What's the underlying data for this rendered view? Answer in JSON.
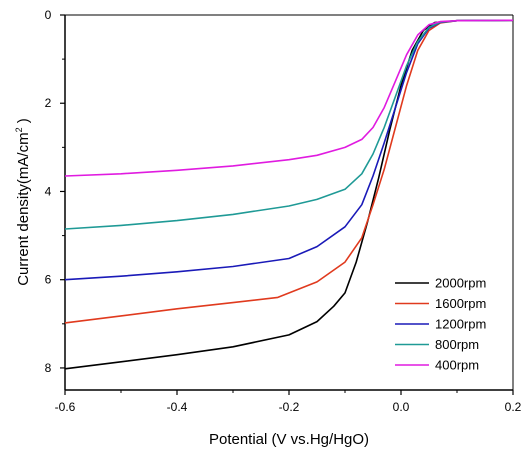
{
  "chart_data": {
    "type": "line",
    "xlabel": "Potential (V vs.Hg/HgO)",
    "ylabel": "Current density(mA/cm",
    "ylabel_sup": "2",
    "ylabel_tail": " )",
    "xlim": [
      -0.6,
      0.2
    ],
    "ylim": [
      8.5,
      0
    ],
    "y_inverted": true,
    "xticks": [
      "-0.6",
      "-0.4",
      "-0.2",
      "0.0",
      "0.2"
    ],
    "yticks": [
      "0",
      "2",
      "4",
      "6",
      "8"
    ],
    "grid": false,
    "legend_position": "bottom-right",
    "series": [
      {
        "name": "2000rpm",
        "color": "#000000",
        "points": [
          [
            -0.6,
            8.02
          ],
          [
            -0.5,
            7.86
          ],
          [
            -0.4,
            7.7
          ],
          [
            -0.3,
            7.52
          ],
          [
            -0.2,
            7.25
          ],
          [
            -0.15,
            6.95
          ],
          [
            -0.12,
            6.6
          ],
          [
            -0.1,
            6.3
          ],
          [
            -0.08,
            5.6
          ],
          [
            -0.06,
            4.7
          ],
          [
            -0.04,
            3.7
          ],
          [
            -0.02,
            2.6
          ],
          [
            0.0,
            1.6
          ],
          [
            0.02,
            0.8
          ],
          [
            0.04,
            0.35
          ],
          [
            0.06,
            0.17
          ],
          [
            0.1,
            0.13
          ],
          [
            0.2,
            0.12
          ]
        ]
      },
      {
        "name": "1600rpm",
        "color": "#e03a1e",
        "points": [
          [
            -0.6,
            6.98
          ],
          [
            -0.5,
            6.82
          ],
          [
            -0.4,
            6.66
          ],
          [
            -0.3,
            6.52
          ],
          [
            -0.22,
            6.4
          ],
          [
            -0.15,
            6.05
          ],
          [
            -0.1,
            5.6
          ],
          [
            -0.07,
            5.05
          ],
          [
            -0.05,
            4.3
          ],
          [
            -0.03,
            3.5
          ],
          [
            -0.01,
            2.55
          ],
          [
            0.01,
            1.6
          ],
          [
            0.03,
            0.8
          ],
          [
            0.05,
            0.35
          ],
          [
            0.07,
            0.18
          ],
          [
            0.1,
            0.13
          ],
          [
            0.2,
            0.12
          ]
        ]
      },
      {
        "name": "1200rpm",
        "color": "#1a1ab8",
        "points": [
          [
            -0.6,
            6.0
          ],
          [
            -0.5,
            5.92
          ],
          [
            -0.4,
            5.82
          ],
          [
            -0.3,
            5.7
          ],
          [
            -0.2,
            5.52
          ],
          [
            -0.15,
            5.25
          ],
          [
            -0.1,
            4.8
          ],
          [
            -0.07,
            4.3
          ],
          [
            -0.05,
            3.65
          ],
          [
            -0.03,
            2.9
          ],
          [
            -0.01,
            2.1
          ],
          [
            0.01,
            1.3
          ],
          [
            0.03,
            0.65
          ],
          [
            0.05,
            0.3
          ],
          [
            0.07,
            0.17
          ],
          [
            0.1,
            0.13
          ],
          [
            0.2,
            0.12
          ]
        ]
      },
      {
        "name": "800rpm",
        "color": "#1f9a96",
        "points": [
          [
            -0.6,
            4.85
          ],
          [
            -0.5,
            4.77
          ],
          [
            -0.4,
            4.66
          ],
          [
            -0.3,
            4.52
          ],
          [
            -0.2,
            4.33
          ],
          [
            -0.15,
            4.18
          ],
          [
            -0.1,
            3.95
          ],
          [
            -0.07,
            3.6
          ],
          [
            -0.05,
            3.15
          ],
          [
            -0.03,
            2.55
          ],
          [
            -0.01,
            1.85
          ],
          [
            0.01,
            1.15
          ],
          [
            0.03,
            0.6
          ],
          [
            0.05,
            0.28
          ],
          [
            0.07,
            0.16
          ],
          [
            0.1,
            0.13
          ],
          [
            0.2,
            0.12
          ]
        ]
      },
      {
        "name": "400rpm",
        "color": "#e01be0",
        "points": [
          [
            -0.6,
            3.65
          ],
          [
            -0.5,
            3.6
          ],
          [
            -0.4,
            3.52
          ],
          [
            -0.3,
            3.42
          ],
          [
            -0.2,
            3.28
          ],
          [
            -0.15,
            3.18
          ],
          [
            -0.1,
            3.0
          ],
          [
            -0.07,
            2.82
          ],
          [
            -0.05,
            2.55
          ],
          [
            -0.03,
            2.1
          ],
          [
            -0.01,
            1.5
          ],
          [
            0.01,
            0.9
          ],
          [
            0.03,
            0.45
          ],
          [
            0.05,
            0.22
          ],
          [
            0.07,
            0.15
          ],
          [
            0.1,
            0.13
          ],
          [
            0.2,
            0.12
          ]
        ]
      }
    ]
  }
}
